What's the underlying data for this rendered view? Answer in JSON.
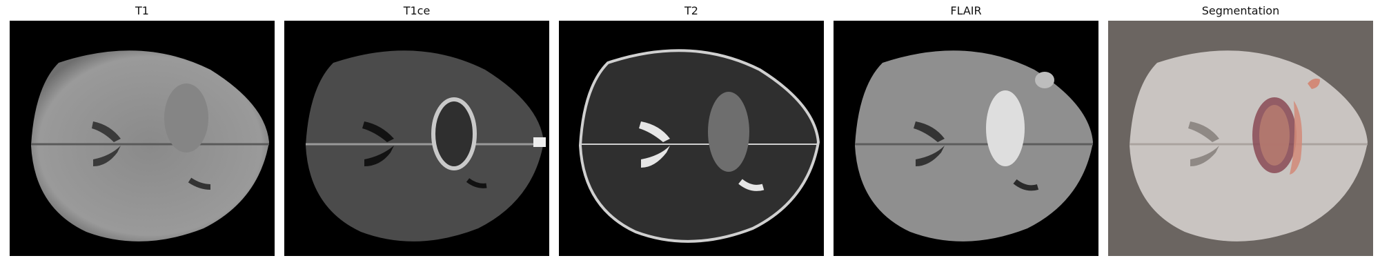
{
  "panels": [
    {
      "title": "T1",
      "image": "mri-axial-t1"
    },
    {
      "title": "T1ce",
      "image": "mri-axial-t1ce"
    },
    {
      "title": "T2",
      "image": "mri-axial-t2"
    },
    {
      "title": "FLAIR",
      "image": "mri-axial-flair"
    },
    {
      "title": "Segmentation",
      "image": "mri-axial-segmentation-overlay"
    }
  ],
  "colors": {
    "background": "#000000",
    "segmentation_background": "#6b6561",
    "tumor_core": "#8a4a55",
    "tumor_edema": "#d28a78"
  }
}
